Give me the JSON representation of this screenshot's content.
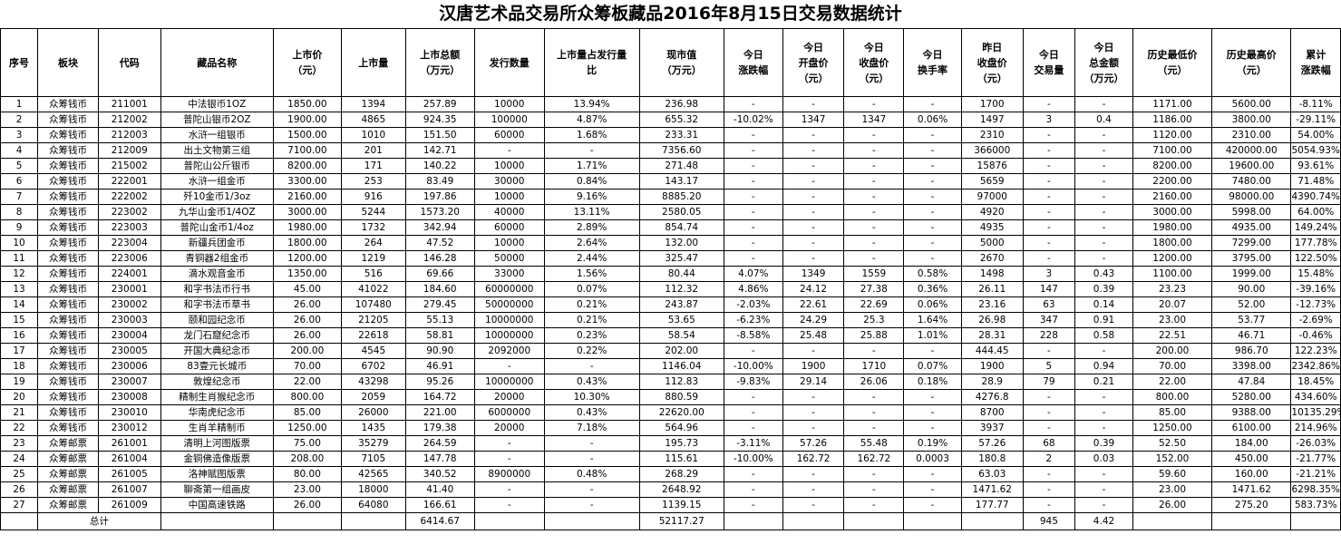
{
  "title": "汉唐艺术品交易所众筹板藏品2016年8月15日交易数据统计",
  "headers": [
    [
      "序号"
    ],
    [
      "板块"
    ],
    [
      "代码"
    ],
    [
      "藏品名称"
    ],
    [
      "上市价",
      "（元）"
    ],
    [
      "上市量"
    ],
    [
      "上市总额",
      "（万元）"
    ],
    [
      "发行数量"
    ],
    [
      "上市量占发行量",
      "比"
    ],
    [
      "现市值",
      "（万元）"
    ],
    [
      "今日",
      "涨跌幅"
    ],
    [
      "今日",
      "开盘价",
      "（元）"
    ],
    [
      "今日",
      "收盘价",
      "（元）"
    ],
    [
      "今日",
      "换手率"
    ],
    [
      "昨日",
      "收盘价",
      "（元）"
    ],
    [
      "今日",
      "交易量"
    ],
    [
      "今日",
      "总金额",
      "（万元）"
    ],
    [
      "历史最低价",
      "（元）"
    ],
    [
      "历史最高价",
      "（元）"
    ],
    [
      "累计",
      "涨跌幅"
    ]
  ],
  "rows": [
    [
      "1",
      "众筹钱币",
      "211001",
      "中法银币1OZ",
      "1850.00",
      "1394",
      "257.89",
      "10000",
      "13.94%",
      "236.98",
      "-",
      "-",
      "-",
      "-",
      "1700",
      "-",
      "-",
      "1171.00",
      "5600.00",
      "-8.11%"
    ],
    [
      "2",
      "众筹钱币",
      "212002",
      "普陀山银币2OZ",
      "1900.00",
      "4865",
      "924.35",
      "100000",
      "4.87%",
      "655.32",
      "-10.02%",
      "1347",
      "1347",
      "0.06%",
      "1497",
      "3",
      "0.4",
      "1186.00",
      "3800.00",
      "-29.11%"
    ],
    [
      "3",
      "众筹钱币",
      "212003",
      "水浒一组银币",
      "1500.00",
      "1010",
      "151.50",
      "60000",
      "1.68%",
      "233.31",
      "-",
      "-",
      "-",
      "-",
      "2310",
      "-",
      "-",
      "1120.00",
      "2310.00",
      "54.00%"
    ],
    [
      "4",
      "众筹钱币",
      "212009",
      "出土文物第三组",
      "7100.00",
      "201",
      "142.71",
      "-",
      "-",
      "7356.60",
      "-",
      "-",
      "-",
      "-",
      "366000",
      "-",
      "-",
      "7100.00",
      "420000.00",
      "5054.93%"
    ],
    [
      "5",
      "众筹钱币",
      "215002",
      "普陀山公斤银币",
      "8200.00",
      "171",
      "140.22",
      "10000",
      "1.71%",
      "271.48",
      "-",
      "-",
      "-",
      "-",
      "15876",
      "-",
      "-",
      "8200.00",
      "19600.00",
      "93.61%"
    ],
    [
      "6",
      "众筹钱币",
      "222001",
      "水浒一组金币",
      "3300.00",
      "253",
      "83.49",
      "30000",
      "0.84%",
      "143.17",
      "-",
      "-",
      "-",
      "-",
      "5659",
      "-",
      "-",
      "2200.00",
      "7480.00",
      "71.48%"
    ],
    [
      "7",
      "众筹钱币",
      "222002",
      "歼10金币1/3oz",
      "2160.00",
      "916",
      "197.86",
      "10000",
      "9.16%",
      "8885.20",
      "-",
      "-",
      "-",
      "-",
      "97000",
      "-",
      "-",
      "2160.00",
      "98000.00",
      "4390.74%"
    ],
    [
      "8",
      "众筹钱币",
      "223002",
      "九华山金币1/4OZ",
      "3000.00",
      "5244",
      "1573.20",
      "40000",
      "13.11%",
      "2580.05",
      "-",
      "-",
      "-",
      "-",
      "4920",
      "-",
      "-",
      "3000.00",
      "5998.00",
      "64.00%"
    ],
    [
      "9",
      "众筹钱币",
      "223003",
      "普陀山金币1/4oz",
      "1980.00",
      "1732",
      "342.94",
      "60000",
      "2.89%",
      "854.74",
      "-",
      "-",
      "-",
      "-",
      "4935",
      "-",
      "-",
      "1980.00",
      "4935.00",
      "149.24%"
    ],
    [
      "10",
      "众筹钱币",
      "223004",
      "新疆兵团金币",
      "1800.00",
      "264",
      "47.52",
      "10000",
      "2.64%",
      "132.00",
      "-",
      "-",
      "-",
      "-",
      "5000",
      "-",
      "-",
      "1800.00",
      "7299.00",
      "177.78%"
    ],
    [
      "11",
      "众筹钱币",
      "223006",
      "青铜器2组金币",
      "1200.00",
      "1219",
      "146.28",
      "50000",
      "2.44%",
      "325.47",
      "-",
      "-",
      "-",
      "-",
      "2670",
      "-",
      "-",
      "1200.00",
      "3795.00",
      "122.50%"
    ],
    [
      "12",
      "众筹钱币",
      "224001",
      "滴水观音金币",
      "1350.00",
      "516",
      "69.66",
      "33000",
      "1.56%",
      "80.44",
      "4.07%",
      "1349",
      "1559",
      "0.58%",
      "1498",
      "3",
      "0.43",
      "1100.00",
      "1999.00",
      "15.48%"
    ],
    [
      "13",
      "众筹钱币",
      "230001",
      "和字书法币行书",
      "45.00",
      "41022",
      "184.60",
      "60000000",
      "0.07%",
      "112.32",
      "4.86%",
      "24.12",
      "27.38",
      "0.36%",
      "26.11",
      "147",
      "0.39",
      "23.23",
      "90.00",
      "-39.16%"
    ],
    [
      "14",
      "众筹钱币",
      "230002",
      "和字书法币草书",
      "26.00",
      "107480",
      "279.45",
      "50000000",
      "0.21%",
      "243.87",
      "-2.03%",
      "22.61",
      "22.69",
      "0.06%",
      "23.16",
      "63",
      "0.14",
      "20.07",
      "52.00",
      "-12.73%"
    ],
    [
      "15",
      "众筹钱币",
      "230003",
      "颐和园纪念币",
      "26.00",
      "21205",
      "55.13",
      "10000000",
      "0.21%",
      "53.65",
      "-6.23%",
      "24.29",
      "25.3",
      "1.64%",
      "26.98",
      "347",
      "0.91",
      "23.00",
      "53.77",
      "-2.69%"
    ],
    [
      "16",
      "众筹钱币",
      "230004",
      "龙门石窟纪念币",
      "26.00",
      "22618",
      "58.81",
      "10000000",
      "0.23%",
      "58.54",
      "-8.58%",
      "25.48",
      "25.88",
      "1.01%",
      "28.31",
      "228",
      "0.58",
      "22.51",
      "46.71",
      "-0.46%"
    ],
    [
      "17",
      "众筹钱币",
      "230005",
      "开国大典纪念币",
      "200.00",
      "4545",
      "90.90",
      "2092000",
      "0.22%",
      "202.00",
      "-",
      "-",
      "-",
      "-",
      "444.45",
      "-",
      "-",
      "200.00",
      "986.70",
      "122.23%"
    ],
    [
      "18",
      "众筹钱币",
      "230006",
      "83壹元长城币",
      "70.00",
      "6702",
      "46.91",
      "-",
      "-",
      "1146.04",
      "-10.00%",
      "1900",
      "1710",
      "0.07%",
      "1900",
      "5",
      "0.94",
      "70.00",
      "3398.00",
      "2342.86%"
    ],
    [
      "19",
      "众筹钱币",
      "230007",
      "敦煌纪念币",
      "22.00",
      "43298",
      "95.26",
      "10000000",
      "0.43%",
      "112.83",
      "-9.83%",
      "29.14",
      "26.06",
      "0.18%",
      "28.9",
      "79",
      "0.21",
      "22.00",
      "47.84",
      "18.45%"
    ],
    [
      "20",
      "众筹钱币",
      "230008",
      "精制生肖猴纪念币",
      "800.00",
      "2059",
      "164.72",
      "20000",
      "10.30%",
      "880.59",
      "-",
      "-",
      "-",
      "-",
      "4276.8",
      "-",
      "-",
      "800.00",
      "5280.00",
      "434.60%"
    ],
    [
      "21",
      "众筹钱币",
      "230010",
      "华南虎纪念币",
      "85.00",
      "26000",
      "221.00",
      "6000000",
      "0.43%",
      "22620.00",
      "-",
      "-",
      "-",
      "-",
      "8700",
      "-",
      "-",
      "85.00",
      "9388.00",
      "10135.29%"
    ],
    [
      "22",
      "众筹钱币",
      "230012",
      "生肖羊精制币",
      "1250.00",
      "1435",
      "179.38",
      "20000",
      "7.18%",
      "564.96",
      "-",
      "-",
      "-",
      "-",
      "3937",
      "-",
      "-",
      "1250.00",
      "6100.00",
      "214.96%"
    ],
    [
      "23",
      "众筹邮票",
      "261001",
      "清明上河图版票",
      "75.00",
      "35279",
      "264.59",
      "-",
      "-",
      "195.73",
      "-3.11%",
      "57.26",
      "55.48",
      "0.19%",
      "57.26",
      "68",
      "0.39",
      "52.50",
      "184.00",
      "-26.03%"
    ],
    [
      "24",
      "众筹邮票",
      "261004",
      "金铜佛造像版票",
      "208.00",
      "7105",
      "147.78",
      "-",
      "-",
      "115.61",
      "-10.00%",
      "162.72",
      "162.72",
      "0.0003",
      "180.8",
      "2",
      "0.03",
      "152.00",
      "450.00",
      "-21.77%"
    ],
    [
      "25",
      "众筹邮票",
      "261005",
      "洛神赋图版票",
      "80.00",
      "42565",
      "340.52",
      "8900000",
      "0.48%",
      "268.29",
      "-",
      "-",
      "-",
      "-",
      "63.03",
      "-",
      "-",
      "59.60",
      "160.00",
      "-21.21%"
    ],
    [
      "26",
      "众筹邮票",
      "261007",
      "聊斋第一组画皮",
      "23.00",
      "18000",
      "41.40",
      "-",
      "-",
      "2648.92",
      "-",
      "-",
      "-",
      "-",
      "1471.62",
      "-",
      "-",
      "23.00",
      "1471.62",
      "6298.35%"
    ],
    [
      "27",
      "众筹邮票",
      "261009",
      "中国高速铁路",
      "26.00",
      "64080",
      "166.61",
      "-",
      "-",
      "1139.15",
      "-",
      "-",
      "-",
      "-",
      "177.77",
      "-",
      "-",
      "26.00",
      "275.20",
      "583.73%"
    ]
  ],
  "total": {
    "label": "总计",
    "total_listing_amount": "6414.67",
    "total_market_value": "52117.27",
    "total_volume": "945",
    "total_amount": "4.42"
  }
}
